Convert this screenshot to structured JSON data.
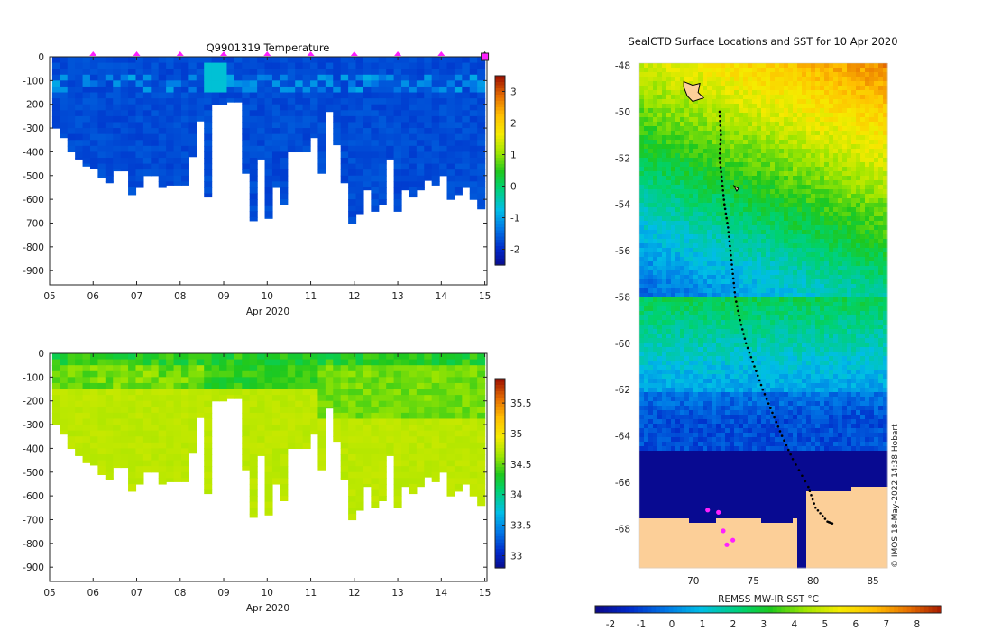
{
  "chart_data": [
    {
      "type": "heatmap",
      "title": "Q9901319  Temperature",
      "variable": "Temperature",
      "xlabel": "Apr 2020",
      "x_ticks": [
        "05",
        "06",
        "07",
        "08",
        "09",
        "10",
        "11",
        "12",
        "13",
        "14",
        "15"
      ],
      "y_ticks": [
        "0",
        "-100",
        "-200",
        "-300",
        "-400",
        "-500",
        "-600",
        "-700",
        "-800",
        "-900"
      ],
      "ylim": [
        -960,
        0
      ],
      "xlim": [
        5,
        15.05
      ],
      "colorbar": {
        "ticks": [
          "3",
          "2",
          "1",
          "0",
          "-1",
          "-2"
        ],
        "range": [
          -2.5,
          3.5
        ]
      },
      "profile_markers_days": [
        6,
        7,
        8,
        9,
        10,
        11,
        12,
        13,
        14,
        15
      ],
      "profile_depths_m": [
        -300,
        -340,
        -400,
        -430,
        -460,
        -470,
        -510,
        -530,
        -480,
        -480,
        -580,
        -550,
        -500,
        -500,
        -550,
        -540,
        -540,
        -540,
        -420,
        -270,
        -590,
        -200,
        -200,
        -190,
        -190,
        -490,
        -690,
        -430,
        -680,
        -550,
        -620,
        -400,
        -400,
        -400,
        -340,
        -490,
        -230,
        -370,
        -530,
        -700,
        -660,
        -560,
        -650,
        -620,
        -430,
        -650,
        -560,
        -590,
        -560,
        -520,
        -540,
        -500,
        -600,
        -580,
        -550,
        -600,
        -640
      ]
    },
    {
      "type": "heatmap",
      "variable": "Salinity",
      "xlabel": "Apr 2020",
      "x_ticks": [
        "05",
        "06",
        "07",
        "08",
        "09",
        "10",
        "11",
        "12",
        "13",
        "14",
        "15"
      ],
      "y_ticks": [
        "0",
        "-100",
        "-200",
        "-300",
        "-400",
        "-500",
        "-600",
        "-700",
        "-800",
        "-900"
      ],
      "ylim": [
        -960,
        0
      ],
      "xlim": [
        5,
        15.05
      ],
      "colorbar": {
        "ticks": [
          "35.5",
          "35",
          "34.5",
          "34",
          "33.5",
          "33"
        ],
        "range": [
          32.8,
          35.9
        ]
      }
    },
    {
      "type": "heatmap",
      "title": "SealCTD Surface Locations and SST for 10 Apr 2020",
      "x_ticks": [
        "70",
        "75",
        "80",
        "85"
      ],
      "y_ticks": [
        "-48",
        "-50",
        "-52",
        "-54",
        "-56",
        "-58",
        "-60",
        "-62",
        "-64",
        "-66",
        "-68"
      ],
      "xlim": [
        65.5,
        86.2
      ],
      "ylim": [
        -69.7,
        -47.9
      ],
      "colorbar": {
        "label": "REMSS MW-IR SST °C",
        "ticks": [
          "-2",
          "-1",
          "0",
          "1",
          "2",
          "3",
          "4",
          "5",
          "6",
          "7",
          "8"
        ],
        "range": [
          -2.5,
          8.8
        ]
      },
      "track": [
        [
          72.2,
          -50.0
        ],
        [
          72.3,
          -51.0
        ],
        [
          72.2,
          -52.0
        ],
        [
          72.4,
          -53.0
        ],
        [
          72.6,
          -54.0
        ],
        [
          72.9,
          -55.0
        ],
        [
          73.1,
          -56.0
        ],
        [
          73.3,
          -57.0
        ],
        [
          73.5,
          -58.0
        ],
        [
          73.9,
          -59.0
        ],
        [
          74.4,
          -60.0
        ],
        [
          75.1,
          -61.0
        ],
        [
          75.8,
          -62.0
        ],
        [
          76.6,
          -63.0
        ],
        [
          77.4,
          -64.0
        ],
        [
          78.3,
          -65.0
        ],
        [
          79.6,
          -66.2
        ],
        [
          80.2,
          -67.1
        ],
        [
          81.2,
          -67.7
        ],
        [
          81.7,
          -67.8
        ]
      ],
      "highlight_positions": [
        [
          71.2,
          -67.2
        ],
        [
          72.1,
          -67.3
        ],
        [
          72.5,
          -68.1
        ],
        [
          72.8,
          -68.7
        ],
        [
          73.3,
          -68.5
        ]
      ],
      "credit": "© IMOS 18-May-2022 14:38 Hobart"
    }
  ]
}
